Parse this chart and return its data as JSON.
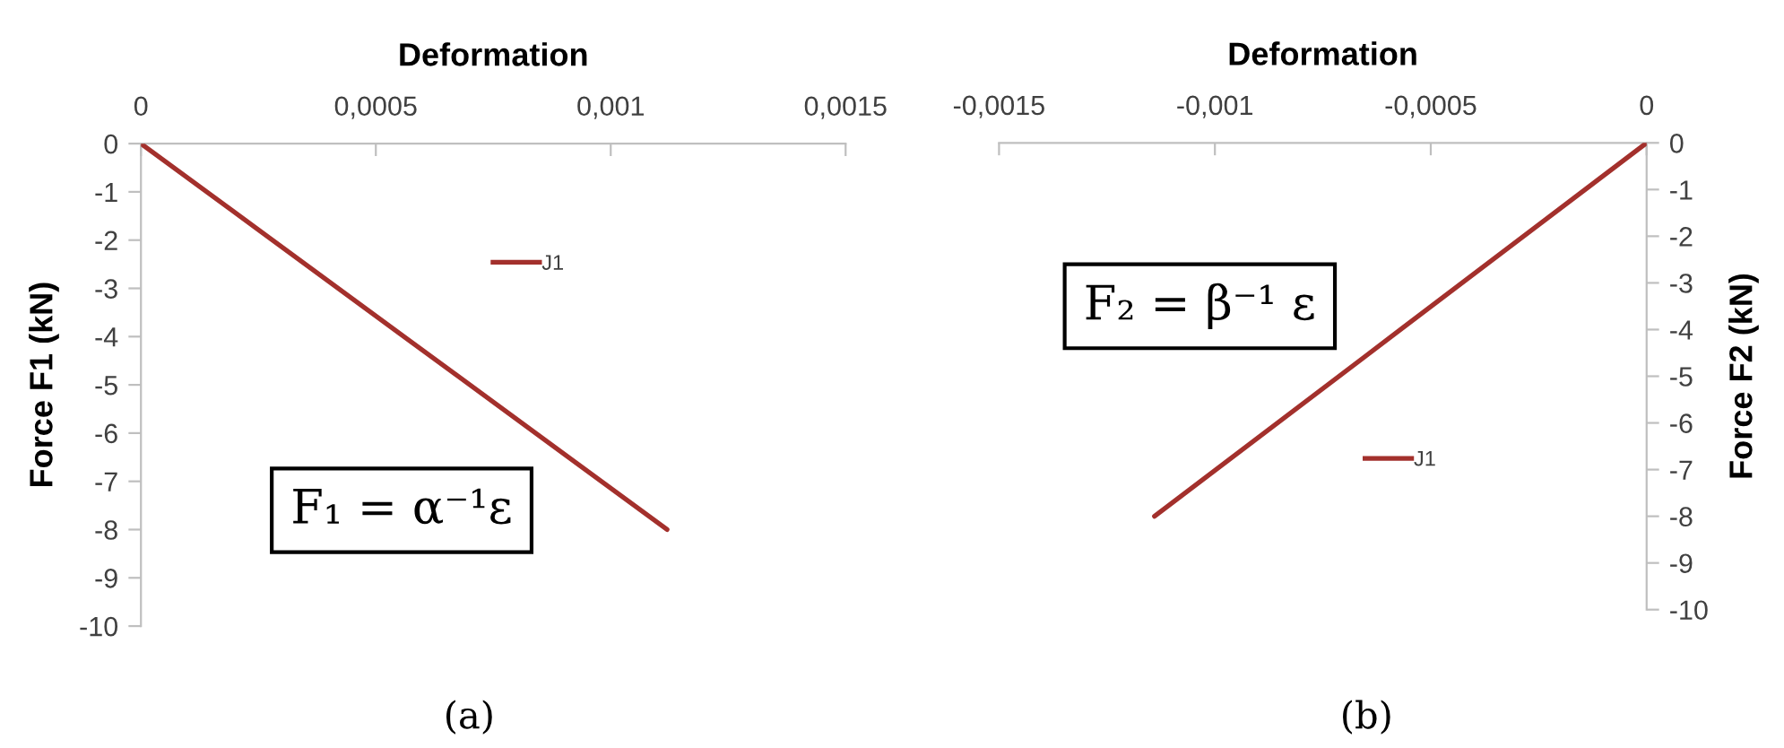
{
  "chart_data": [
    {
      "type": "line",
      "xlabel": "Deformation",
      "ylabel": "Force F1 (kN)",
      "xlim": [
        0,
        0.0015
      ],
      "xticks": [
        0,
        {
          "value": 0.0005,
          "label": "0,0005"
        },
        {
          "value": 0.001,
          "label": "0,001"
        },
        {
          "value": 0.0015,
          "label": "0,0015"
        }
      ],
      "ylim": [
        -10,
        0
      ],
      "yticks": [
        0,
        -1,
        -2,
        -3,
        -4,
        -5,
        -6,
        -7,
        -8,
        -9,
        -10
      ],
      "series": [
        {
          "name": "J1",
          "color": "#a3302c",
          "x": [
            0,
            0.00056,
            0.00112
          ],
          "values": [
            0,
            -4,
            -8
          ]
        }
      ],
      "legend": "top",
      "annotations": [
        "F₁ = α⁻¹ε",
        "(a)"
      ]
    },
    {
      "type": "line",
      "xlabel": "Deformation",
      "ylabel": "Force F2 (kN)",
      "xlim": [
        -0.0015,
        0
      ],
      "xticks": [
        {
          "value": -0.0015,
          "label": "-0,0015"
        },
        {
          "value": -0.001,
          "label": "-0,001"
        },
        {
          "value": -0.0005,
          "label": "-0,0005"
        },
        0
      ],
      "ylim": [
        -10,
        0
      ],
      "yticks": [
        0,
        -1,
        -2,
        -3,
        -4,
        -5,
        -6,
        -7,
        -8,
        -9,
        -10
      ],
      "series": [
        {
          "name": "J1",
          "color": "#a3302c",
          "x": [
            0,
            -0.00057,
            -0.00114
          ],
          "values": [
            0,
            -4,
            -8
          ]
        }
      ],
      "legend": "bottom",
      "annotations": [
        "F₂ = β⁻¹ ε",
        "(b)"
      ]
    }
  ]
}
